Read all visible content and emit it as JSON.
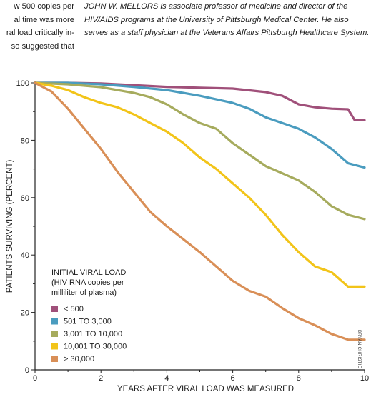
{
  "article": {
    "left_column_lines": [
      "w 500 copies per",
      "al time was more",
      "ral load critically in-",
      "so suggested that"
    ],
    "bio_name": "JOHN W. MELLORS",
    "bio_text": " is associate professor of medicine and director of the HIV/AIDS programs at the University of Pittsburgh Medical Center. He also serves as a staff physician at the Veterans Affairs Pittsburgh Healthcare System.",
    "credit": "BRYAN CHRISTIE"
  },
  "chart_data": {
    "type": "line",
    "xlabel": "YEARS AFTER VIRAL LOAD WAS MEASURED",
    "ylabel": "PATIENTS SURVIVING (PERCENT)",
    "xlim": [
      0,
      10
    ],
    "ylim": [
      0,
      100
    ],
    "xticks": [
      0,
      2,
      4,
      6,
      8,
      10
    ],
    "yticks": [
      0,
      20,
      40,
      60,
      80,
      100
    ],
    "grid": false,
    "legend_title": [
      "INITIAL VIRAL LOAD",
      "(HIV RNA copies per",
      "milliliter of plasma)"
    ],
    "legend_position": "bottom-left",
    "series": [
      {
        "name": "< 500",
        "color": "#a0507a",
        "x": [
          0,
          1,
          2,
          3,
          4,
          5,
          6,
          7,
          7.5,
          8,
          8.5,
          9,
          9.5,
          9.7,
          10
        ],
        "y": [
          100,
          100,
          99.8,
          99.2,
          98.6,
          98.3,
          98,
          96.8,
          95.5,
          92.5,
          91.5,
          91,
          90.8,
          87,
          87
        ]
      },
      {
        "name": "501 TO 3,000",
        "color": "#4a9cbf",
        "x": [
          0,
          1,
          2,
          3,
          4,
          5,
          6,
          6.5,
          7,
          7.5,
          8,
          8.5,
          9,
          9.5,
          10
        ],
        "y": [
          100,
          100,
          99.5,
          98.6,
          97.5,
          95.5,
          93,
          91,
          88,
          86,
          84,
          81,
          77,
          72,
          70.5
        ]
      },
      {
        "name": "3,001 TO 10,000",
        "color": "#a6ab5d",
        "x": [
          0,
          1,
          2,
          3,
          3.5,
          4,
          4.5,
          5,
          5.5,
          6,
          6.5,
          7,
          7.5,
          8,
          8.5,
          9,
          9.5,
          10
        ],
        "y": [
          100,
          99.5,
          98.5,
          96.5,
          95,
          92.5,
          89,
          86,
          84,
          79,
          75,
          71,
          68.5,
          66,
          62,
          57,
          54,
          52.5
        ]
      },
      {
        "name": "10,001 TO 30,000",
        "color": "#f2c419",
        "x": [
          0,
          0.5,
          1,
          1.5,
          2,
          2.5,
          3,
          3.5,
          4,
          4.5,
          5,
          5.5,
          6,
          6.5,
          7,
          7.5,
          8,
          8.5,
          9,
          9.5,
          10
        ],
        "y": [
          100,
          99,
          97.5,
          95,
          93,
          91.5,
          89,
          86,
          83,
          79,
          74,
          70,
          65,
          60,
          54,
          47,
          41,
          36,
          34,
          29,
          29
        ]
      },
      {
        "name": "> 30,000",
        "color": "#d98f57",
        "x": [
          0,
          0.5,
          1,
          1.5,
          2,
          2.5,
          3,
          3.5,
          4,
          4.5,
          5,
          5.5,
          6,
          6.5,
          7,
          7.5,
          8,
          8.5,
          9,
          9.5,
          10
        ],
        "y": [
          100,
          97,
          91,
          84,
          77,
          69,
          62,
          55,
          50,
          45.5,
          41,
          36,
          31,
          27.5,
          25.5,
          21.5,
          18,
          15.5,
          12.5,
          10.5,
          10.5
        ]
      }
    ]
  }
}
